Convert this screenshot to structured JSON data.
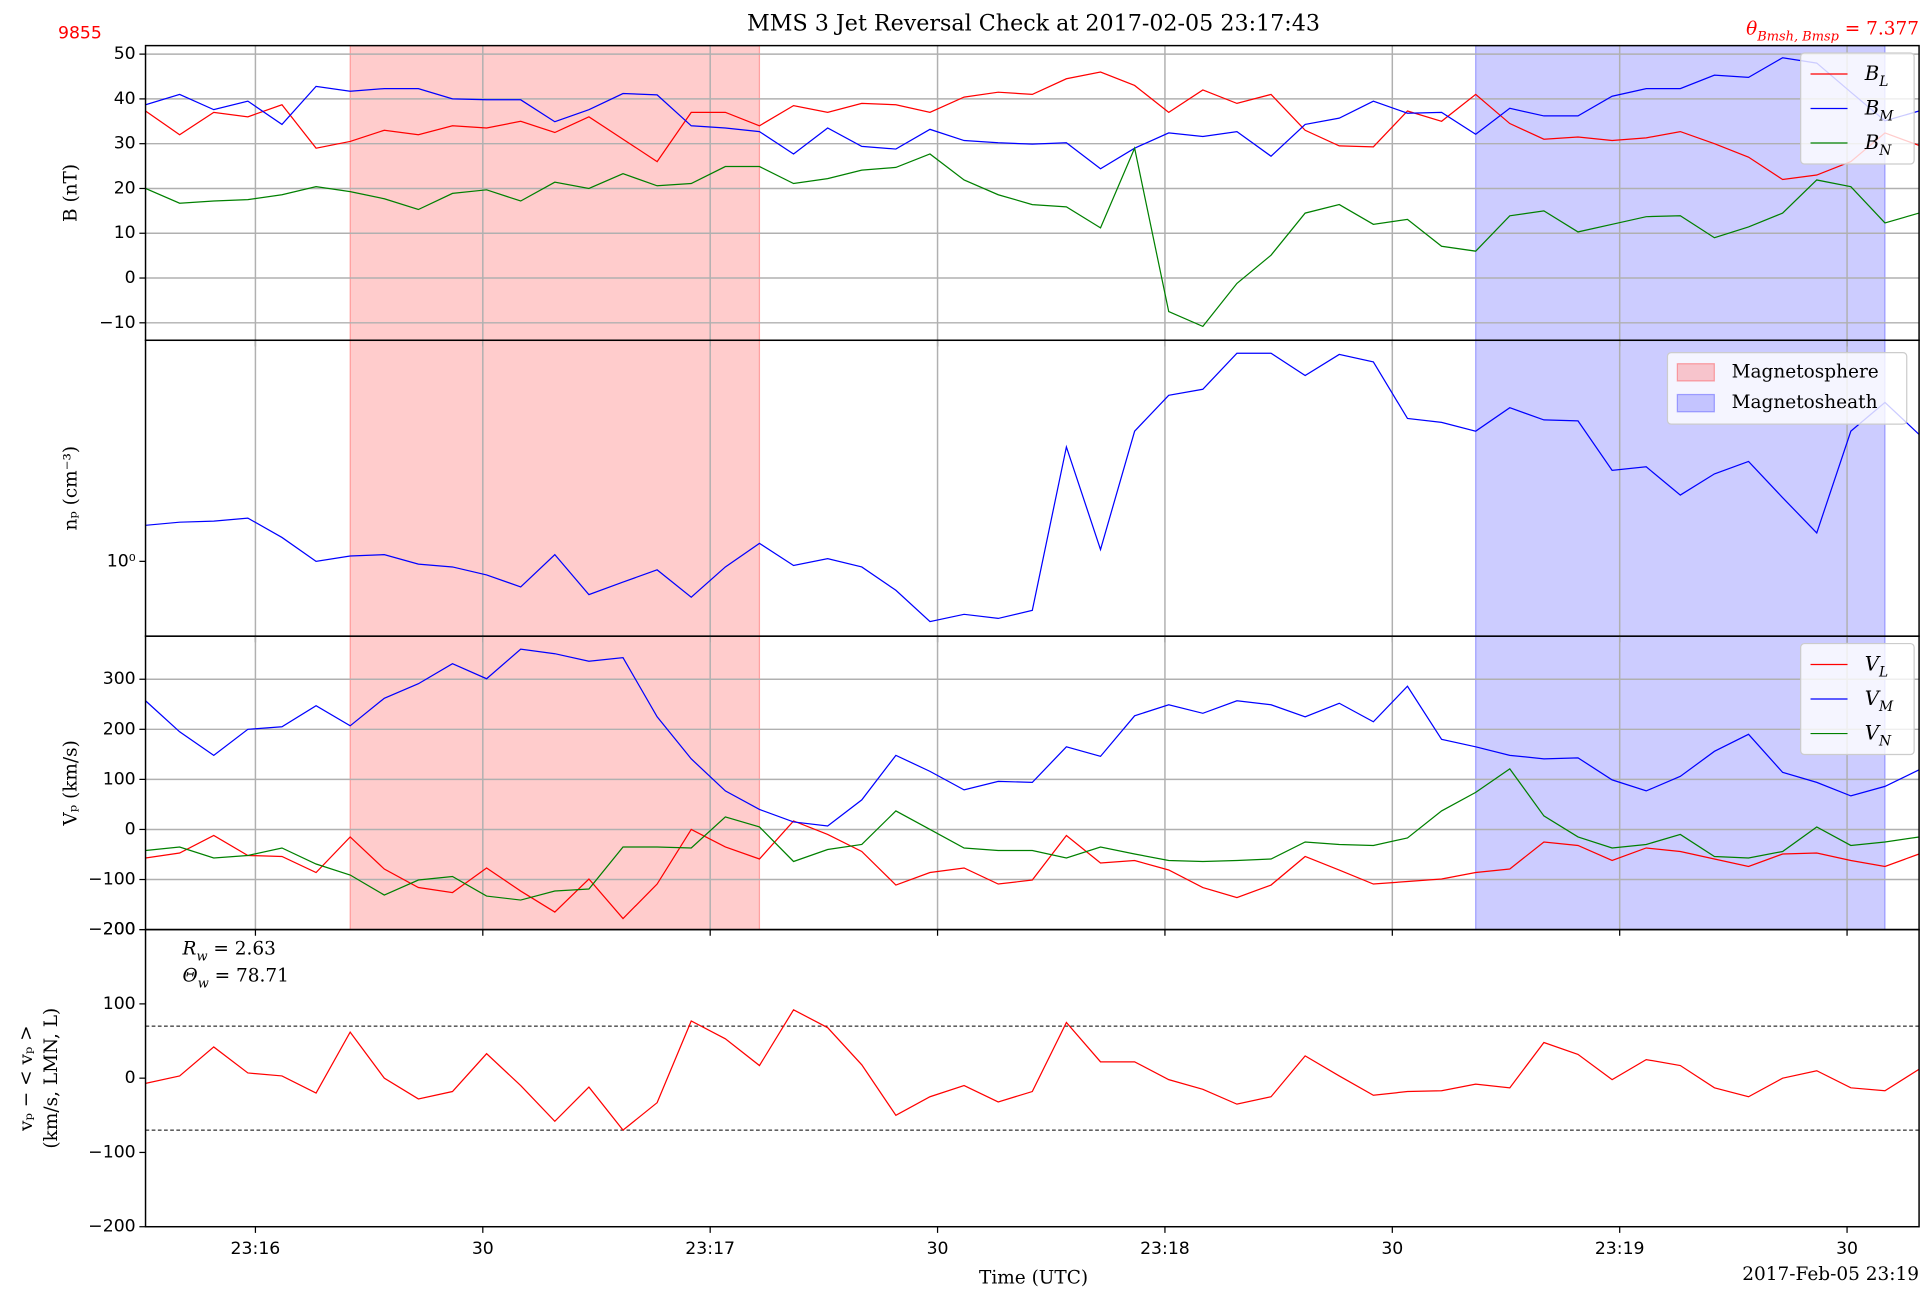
{
  "figure": {
    "id_label": "9855",
    "title": "MMS 3 Jet Reversal Check at 2017-02-05 23:17:43",
    "angle": {
      "main": "θ",
      "sub": "Bmsh, Bmsp",
      "rest": " = 7.377"
    },
    "xlabel": "Time (UTC)",
    "date_label": "2017-Feb-05 23:19",
    "regions": [
      {
        "name": "Magnetosphere",
        "color": "#ff0000",
        "start": "23:16:12.5",
        "end": "23:17:06.5"
      },
      {
        "name": "Magnetosheath",
        "color": "#0000ff",
        "start": "23:18:41.0",
        "end": "23:19:35.0"
      }
    ]
  },
  "chart_data": [
    {
      "type": "line",
      "ylabel": [
        "B (nT)"
      ],
      "grid": "both",
      "show_regions": true,
      "legend": "upper right",
      "xlim": [
        "23:15:45.5",
        "23:19:39.5"
      ],
      "xticks": [
        {
          "value": "23:16:00",
          "label": "23:16"
        },
        {
          "value": "23:16:30",
          "label": "30"
        },
        {
          "value": "23:17:00",
          "label": "23:17"
        },
        {
          "value": "23:17:30",
          "label": "30"
        },
        {
          "value": "23:18:00",
          "label": "23:18"
        },
        {
          "value": "23:18:30",
          "label": "30"
        },
        {
          "value": "23:19:00",
          "label": "23:19"
        },
        {
          "value": "23:19:30",
          "label": "30"
        }
      ],
      "ylim": [
        -13.9,
        51.9
      ],
      "yticks": [
        {
          "value": -10,
          "label": "−10"
        },
        0,
        10,
        20,
        30,
        40,
        50
      ],
      "x": [
        "23:15:45.5",
        "23:15:50.0",
        "23:15:54.5",
        "23:15:59.0",
        "23:16:03.5",
        "23:16:08.0",
        "23:16:12.5",
        "23:16:17.0",
        "23:16:21.5",
        "23:16:26.0",
        "23:16:30.5",
        "23:16:35.0",
        "23:16:39.5",
        "23:16:44.0",
        "23:16:48.5",
        "23:16:53.0",
        "23:16:57.5",
        "23:17:02.0",
        "23:17:06.5",
        "23:17:11.0",
        "23:17:15.5",
        "23:17:20.0",
        "23:17:24.5",
        "23:17:29.0",
        "23:17:33.5",
        "23:17:38.0",
        "23:17:42.5",
        "23:17:47.0",
        "23:17:51.5",
        "23:17:56.0",
        "23:18:00.5",
        "23:18:05.0",
        "23:18:09.5",
        "23:18:14.0",
        "23:18:18.5",
        "23:18:23.0",
        "23:18:27.5",
        "23:18:32.0",
        "23:18:36.5",
        "23:18:41.0",
        "23:18:45.5",
        "23:18:50.0",
        "23:18:54.5",
        "23:18:59.0",
        "23:19:03.5",
        "23:19:08.0",
        "23:19:12.5",
        "23:19:17.0",
        "23:19:21.5",
        "23:19:26.0",
        "23:19:30.5",
        "23:19:35.0",
        "23:19:39.5"
      ],
      "series": [
        {
          "name": "BL",
          "color": "#ff0000",
          "values": [
            37.3,
            32,
            37,
            36,
            38.7,
            29,
            30.5,
            33,
            32,
            34,
            33.5,
            35,
            32.5,
            36,
            31,
            26,
            37,
            37,
            34,
            38.5,
            37,
            39,
            38.7,
            37,
            40.4,
            41.5,
            41,
            44.5,
            46,
            43,
            37,
            42,
            39,
            41,
            33,
            29.5,
            29.3,
            37.3,
            35,
            41,
            34.5,
            31,
            31.5,
            30.7,
            31.3,
            32.7,
            30,
            27,
            22,
            23,
            26,
            32.4,
            29.6
          ]
        },
        {
          "name": "BM",
          "color": "#0000ff",
          "values": [
            38.7,
            41,
            37.6,
            39.5,
            34.3,
            42.8,
            41.7,
            42.3,
            42.3,
            40,
            39.8,
            39.8,
            34.9,
            37.6,
            41.2,
            40.9,
            34,
            33.5,
            32.7,
            27.7,
            33.5,
            29.4,
            28.8,
            33.2,
            30.7,
            30.2,
            29.9,
            30.2,
            24.4,
            29,
            32.4,
            31.6,
            32.7,
            27.2,
            34.3,
            35.7,
            39.5,
            36.8,
            37,
            32.1,
            37.9,
            36.2,
            36.2,
            40.6,
            42.3,
            42.3,
            45.3,
            44.8,
            49.2,
            48,
            41.5,
            35.1,
            37.3
          ]
        },
        {
          "name": "BN",
          "color": "#008000",
          "values": [
            20,
            16.7,
            17.2,
            17.5,
            18.6,
            20.4,
            19.3,
            17.7,
            15.3,
            18.9,
            19.7,
            17.2,
            21.4,
            20,
            23.3,
            20.6,
            21.1,
            24.9,
            24.9,
            21.1,
            22.2,
            24.1,
            24.7,
            27.7,
            21.9,
            18.6,
            16.4,
            15.9,
            11.2,
            29,
            -7.5,
            -10.8,
            -1.2,
            5.1,
            14.5,
            16.4,
            12,
            13.1,
            7.1,
            6,
            13.9,
            15,
            10.3,
            12,
            13.7,
            13.9,
            9,
            11.4,
            14.5,
            21.9,
            20.4,
            12.3,
            14.5
          ]
        }
      ]
    },
    {
      "type": "line",
      "ylabel": [
        "nₚ (cm⁻³)"
      ],
      "grid": "x",
      "log": true,
      "show_regions": true,
      "region_legend": "upper right",
      "xlim": [
        "23:15:45.5",
        "23:19:39.5"
      ],
      "xticks": [
        {
          "value": "23:16:00",
          "label": "23:16"
        },
        {
          "value": "23:16:30",
          "label": "30"
        },
        {
          "value": "23:17:00",
          "label": "23:17"
        },
        {
          "value": "23:17:30",
          "label": "30"
        },
        {
          "value": "23:18:00",
          "label": "23:18"
        },
        {
          "value": "23:18:30",
          "label": "30"
        },
        {
          "value": "23:19:00",
          "label": "23:19"
        },
        {
          "value": "23:19:30",
          "label": "30"
        }
      ],
      "ylim": [
        0.58,
        5.0
      ],
      "yticks": [
        {
          "value": 1,
          "label": "10⁰"
        }
      ],
      "x": [
        "23:15:45.5",
        "23:15:50.0",
        "23:15:54.5",
        "23:15:59.0",
        "23:16:03.5",
        "23:16:08.0",
        "23:16:12.5",
        "23:16:17.0",
        "23:16:21.5",
        "23:16:26.0",
        "23:16:30.5",
        "23:16:35.0",
        "23:16:39.5",
        "23:16:44.0",
        "23:16:48.5",
        "23:16:53.0",
        "23:16:57.5",
        "23:17:02.0",
        "23:17:06.5",
        "23:17:11.0",
        "23:17:15.5",
        "23:17:20.0",
        "23:17:24.5",
        "23:17:29.0",
        "23:17:33.5",
        "23:17:38.0",
        "23:17:42.5",
        "23:17:47.0",
        "23:17:51.5",
        "23:17:56.0",
        "23:18:00.5",
        "23:18:05.0",
        "23:18:09.5",
        "23:18:14.0",
        "23:18:18.5",
        "23:18:23.0",
        "23:18:27.5",
        "23:18:32.0",
        "23:18:36.5",
        "23:18:41.0",
        "23:18:45.5",
        "23:18:50.0",
        "23:18:54.5",
        "23:18:59.0",
        "23:19:03.5",
        "23:19:08.0",
        "23:19:12.5",
        "23:19:17.0",
        "23:19:21.5",
        "23:19:26.0",
        "23:19:30.5",
        "23:19:35.0",
        "23:19:39.5"
      ],
      "series": [
        {
          "color": "#0000ff",
          "values": [
            1.3,
            1.33,
            1.34,
            1.37,
            1.19,
            1.0,
            1.04,
            1.05,
            0.98,
            0.96,
            0.906,
            0.83,
            1.05,
            0.785,
            0.86,
            0.94,
            0.77,
            0.96,
            1.14,
            0.97,
            1.02,
            0.96,
            0.81,
            0.645,
            0.68,
            0.66,
            0.7,
            2.3,
            1.09,
            2.58,
            3.35,
            3.5,
            4.55,
            4.55,
            3.87,
            4.51,
            4.27,
            2.83,
            2.75,
            2.58,
            3.06,
            2.8,
            2.78,
            1.94,
            1.99,
            1.62,
            1.89,
            2.07,
            1.59,
            1.23,
            2.58,
            3.18,
            2.52
          ]
        }
      ]
    },
    {
      "type": "line",
      "ylabel": [
        "Vₚ (km/s)"
      ],
      "grid": "both",
      "show_regions": true,
      "legend": "upper right",
      "xlim": [
        "23:15:45.5",
        "23:19:39.5"
      ],
      "xticks": [
        {
          "value": "23:16:00",
          "label": "23:16"
        },
        {
          "value": "23:16:30",
          "label": "30"
        },
        {
          "value": "23:17:00",
          "label": "23:17"
        },
        {
          "value": "23:17:30",
          "label": "30"
        },
        {
          "value": "23:18:00",
          "label": "23:18"
        },
        {
          "value": "23:18:30",
          "label": "30"
        },
        {
          "value": "23:19:00",
          "label": "23:19"
        },
        {
          "value": "23:19:30",
          "label": "30"
        }
      ],
      "ylim": [
        -200,
        386
      ],
      "yticks": [
        {
          "value": -200,
          "label": "−200"
        },
        {
          "value": -100,
          "label": "−100"
        },
        0,
        100,
        200,
        300
      ],
      "x": [
        "23:15:45.5",
        "23:15:50.0",
        "23:15:54.5",
        "23:15:59.0",
        "23:16:03.5",
        "23:16:08.0",
        "23:16:12.5",
        "23:16:17.0",
        "23:16:21.5",
        "23:16:26.0",
        "23:16:30.5",
        "23:16:35.0",
        "23:16:39.5",
        "23:16:44.0",
        "23:16:48.5",
        "23:16:53.0",
        "23:16:57.5",
        "23:17:02.0",
        "23:17:06.5",
        "23:17:11.0",
        "23:17:15.5",
        "23:17:20.0",
        "23:17:24.5",
        "23:17:29.0",
        "23:17:33.5",
        "23:17:38.0",
        "23:17:42.5",
        "23:17:47.0",
        "23:17:51.5",
        "23:17:56.0",
        "23:18:00.5",
        "23:18:05.0",
        "23:18:09.5",
        "23:18:14.0",
        "23:18:18.5",
        "23:18:23.0",
        "23:18:27.5",
        "23:18:32.0",
        "23:18:36.5",
        "23:18:41.0",
        "23:18:45.5",
        "23:18:50.0",
        "23:18:54.5",
        "23:18:59.0",
        "23:19:03.5",
        "23:19:08.0",
        "23:19:12.5",
        "23:19:17.0",
        "23:19:21.5",
        "23:19:26.0",
        "23:19:30.5",
        "23:19:35.0",
        "23:19:39.5"
      ],
      "series": [
        {
          "name": "VL",
          "color": "#ff0000",
          "values": [
            -57,
            -47,
            -12,
            -52,
            -54,
            -86,
            -15,
            -79,
            -116,
            -126,
            -77,
            -123,
            -165,
            -99,
            -178,
            -109,
            0,
            -35,
            -59,
            17,
            -10,
            -44,
            -111,
            -86,
            -77,
            -109,
            -101,
            -12,
            -67,
            -62,
            -81,
            -116,
            -136,
            -111,
            -54,
            -81,
            -109,
            -104,
            -99,
            -86,
            -79,
            -25,
            -32,
            -62,
            -37,
            -44,
            -59,
            -74,
            -49,
            -47,
            -62,
            -74,
            -49
          ]
        },
        {
          "name": "VM",
          "color": "#0000ff",
          "values": [
            257,
            195,
            148,
            200,
            205,
            247,
            207,
            262,
            291,
            331,
            301,
            360,
            351,
            336,
            343,
            225,
            141,
            77,
            40,
            15,
            7,
            59,
            148,
            116,
            79,
            96,
            94,
            165,
            146,
            227,
            249,
            232,
            257,
            249,
            225,
            252,
            215,
            286,
            180,
            165,
            148,
            141,
            143,
            99,
            77,
            106,
            156,
            190,
            114,
            94,
            67,
            86,
            119
          ]
        },
        {
          "name": "VN",
          "color": "#008000",
          "values": [
            -42,
            -35,
            -57,
            -52,
            -37,
            -69,
            -91,
            -131,
            -101,
            -94,
            -133,
            -141,
            -123,
            -119,
            -35,
            -35,
            -37,
            25,
            5,
            -64,
            -40,
            -30,
            37,
            0,
            -37,
            -42,
            -42,
            -57,
            -35,
            -49,
            -62,
            -64,
            -62,
            -59,
            -25,
            -30,
            -32,
            -17,
            37,
            74,
            121,
            27,
            -15,
            -37,
            -30,
            -10,
            -54,
            -57,
            -44,
            5,
            -32,
            -25,
            -15
          ]
        }
      ]
    },
    {
      "type": "line",
      "ylabel": [
        "vₚ − < vₚ >",
        "(km/s, LMN, L)"
      ],
      "grid": "none",
      "show_regions": false,
      "annotations": [
        {
          "main": "R",
          "sub": "w",
          "rest": " = 2.63"
        },
        {
          "main": "Θ",
          "sub": "w",
          "rest": " = 78.71"
        }
      ],
      "thresholds": [
        70,
        -70
      ],
      "xlim": [
        "23:15:45.5",
        "23:19:39.5"
      ],
      "xticks": [
        {
          "value": "23:16:00",
          "label": "23:16"
        },
        {
          "value": "23:16:30",
          "label": "30"
        },
        {
          "value": "23:17:00",
          "label": "23:17"
        },
        {
          "value": "23:17:30",
          "label": "30"
        },
        {
          "value": "23:18:00",
          "label": "23:18"
        },
        {
          "value": "23:18:30",
          "label": "30"
        },
        {
          "value": "23:19:00",
          "label": "23:19"
        },
        {
          "value": "23:19:30",
          "label": "30"
        }
      ],
      "ylim": [
        -200,
        200
      ],
      "yticks": [
        {
          "value": -200,
          "label": "−200"
        },
        {
          "value": -100,
          "label": "−100"
        },
        0,
        100,
        200
      ],
      "x": [
        "23:15:45.5",
        "23:15:50.0",
        "23:15:54.5",
        "23:15:59.0",
        "23:16:03.5",
        "23:16:08.0",
        "23:16:12.5",
        "23:16:17.0",
        "23:16:21.5",
        "23:16:26.0",
        "23:16:30.5",
        "23:16:35.0",
        "23:16:39.5",
        "23:16:44.0",
        "23:16:48.5",
        "23:16:53.0",
        "23:16:57.5",
        "23:17:02.0",
        "23:17:06.5",
        "23:17:11.0",
        "23:17:15.5",
        "23:17:20.0",
        "23:17:24.5",
        "23:17:29.0",
        "23:17:33.5",
        "23:17:38.0",
        "23:17:42.5",
        "23:17:47.0",
        "23:17:51.5",
        "23:17:56.0",
        "23:18:00.5",
        "23:18:05.0",
        "23:18:09.5",
        "23:18:14.0",
        "23:18:18.5",
        "23:18:23.0",
        "23:18:27.5",
        "23:18:32.0",
        "23:18:36.5",
        "23:18:41.0",
        "23:18:45.5",
        "23:18:50.0",
        "23:18:54.5",
        "23:18:59.0",
        "23:19:03.5",
        "23:19:08.0",
        "23:19:12.5",
        "23:19:17.0",
        "23:19:21.5",
        "23:19:26.0",
        "23:19:30.5",
        "23:19:35.0",
        "23:19:39.5"
      ],
      "series": [
        {
          "color": "#ff0000",
          "values": [
            -7,
            3,
            42,
            7,
            3,
            -20,
            62,
            0,
            -28,
            -18,
            33,
            -10,
            -58,
            -12,
            -70,
            -33,
            77,
            53,
            17,
            92,
            68,
            18,
            -50,
            -25,
            -10,
            -32,
            -18,
            75,
            22,
            22,
            -2,
            -15,
            -35,
            -25,
            30,
            3,
            -23,
            -18,
            -17,
            -8,
            -13,
            48,
            32,
            -2,
            25,
            17,
            -13,
            -25,
            0,
            10,
            -13,
            -17,
            12
          ]
        }
      ]
    }
  ]
}
